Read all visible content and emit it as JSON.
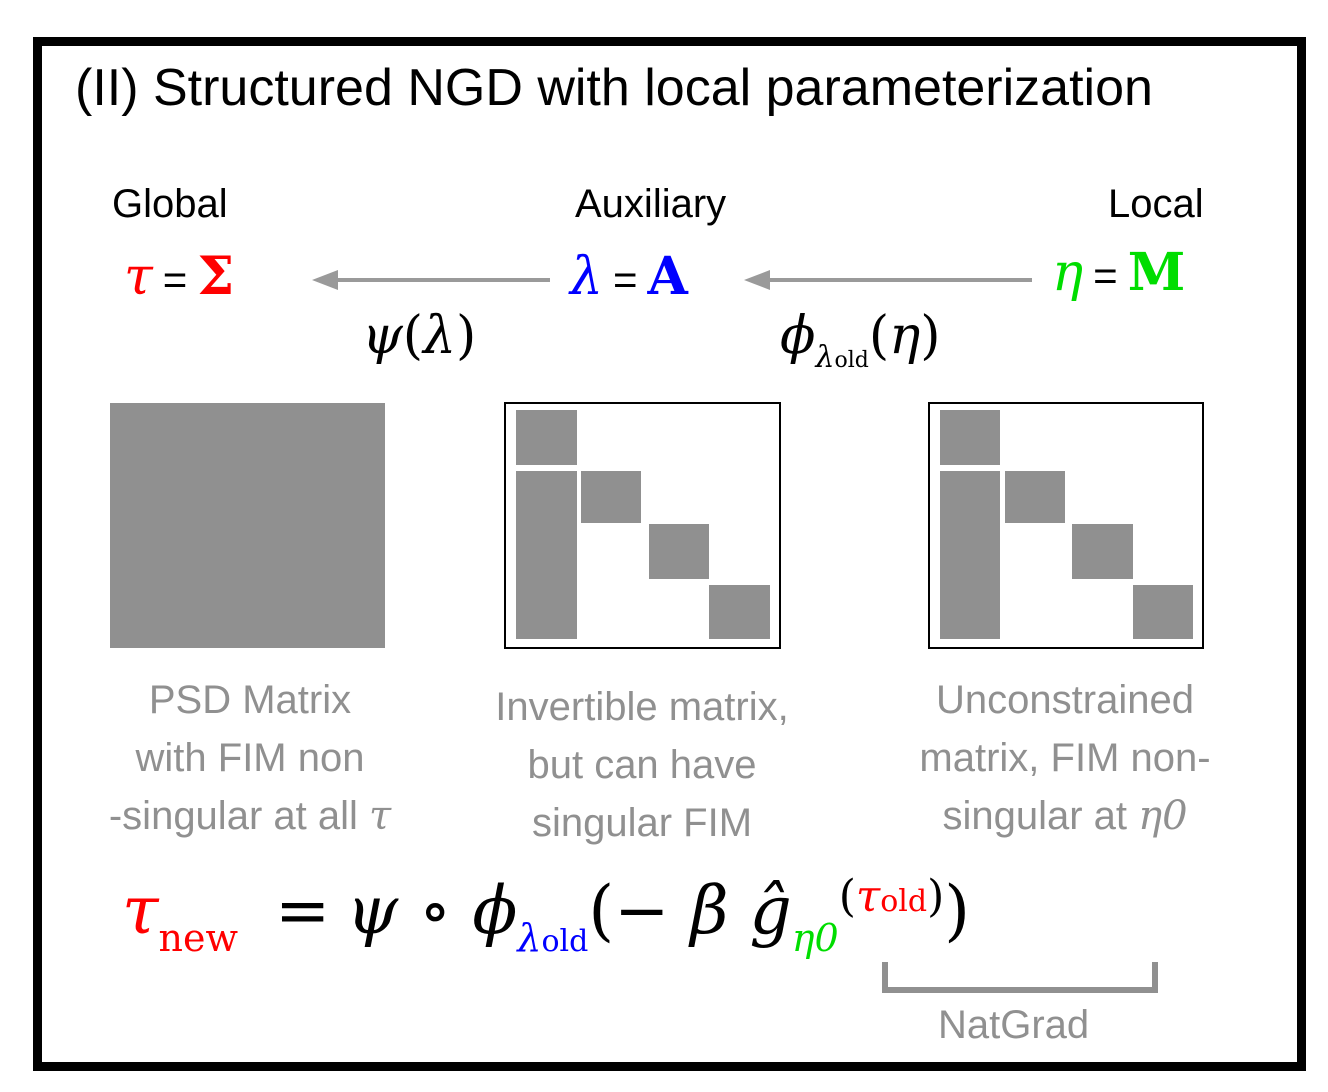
{
  "title": "(II) Structured NGD with local parameterization",
  "columns": {
    "global": {
      "heading": "Global",
      "symbol": "τ",
      "value": "Σ",
      "caption": [
        "PSD Matrix",
        "with FIM non",
        "-singular at all"
      ],
      "caption_symbol": "τ"
    },
    "auxiliary": {
      "heading": "Auxiliary",
      "symbol": "λ",
      "value": "A",
      "caption": [
        "Invertible matrix,",
        "but can have",
        "singular FIM"
      ]
    },
    "local": {
      "heading": "Local",
      "symbol": "η",
      "value": "M",
      "caption": [
        "Unconstrained",
        "matrix, FIM non-",
        "singular at"
      ],
      "caption_symbol": "η0"
    }
  },
  "equals": "=",
  "maps": {
    "psi": {
      "fn": "ψ",
      "open": "(",
      "arg": "λ",
      "close": ")"
    },
    "phi": {
      "fn": "ϕ",
      "sub_base": "λ",
      "sub_sub": "old",
      "open": "(",
      "arg": "η",
      "close": ")"
    }
  },
  "update": {
    "lhs": "τ",
    "lhs_sub": "new",
    "eq": "=",
    "compose": "ψ ∘ ϕ",
    "phi_sub": "λ",
    "phi_sub_sub": "old",
    "open": "(",
    "minus_beta": "− β",
    "grad": "ĝ",
    "grad_sub": "η0",
    "arg_open": "(",
    "arg": "τ",
    "arg_sub": "old",
    "arg_close": ")",
    "close": ")"
  },
  "natgrad_label": "NatGrad",
  "colors": {
    "global": "#ff0000",
    "auxiliary": "#0000ff",
    "local": "#00dd00",
    "gray": "#909090",
    "arrow": "#9a9a9a"
  }
}
